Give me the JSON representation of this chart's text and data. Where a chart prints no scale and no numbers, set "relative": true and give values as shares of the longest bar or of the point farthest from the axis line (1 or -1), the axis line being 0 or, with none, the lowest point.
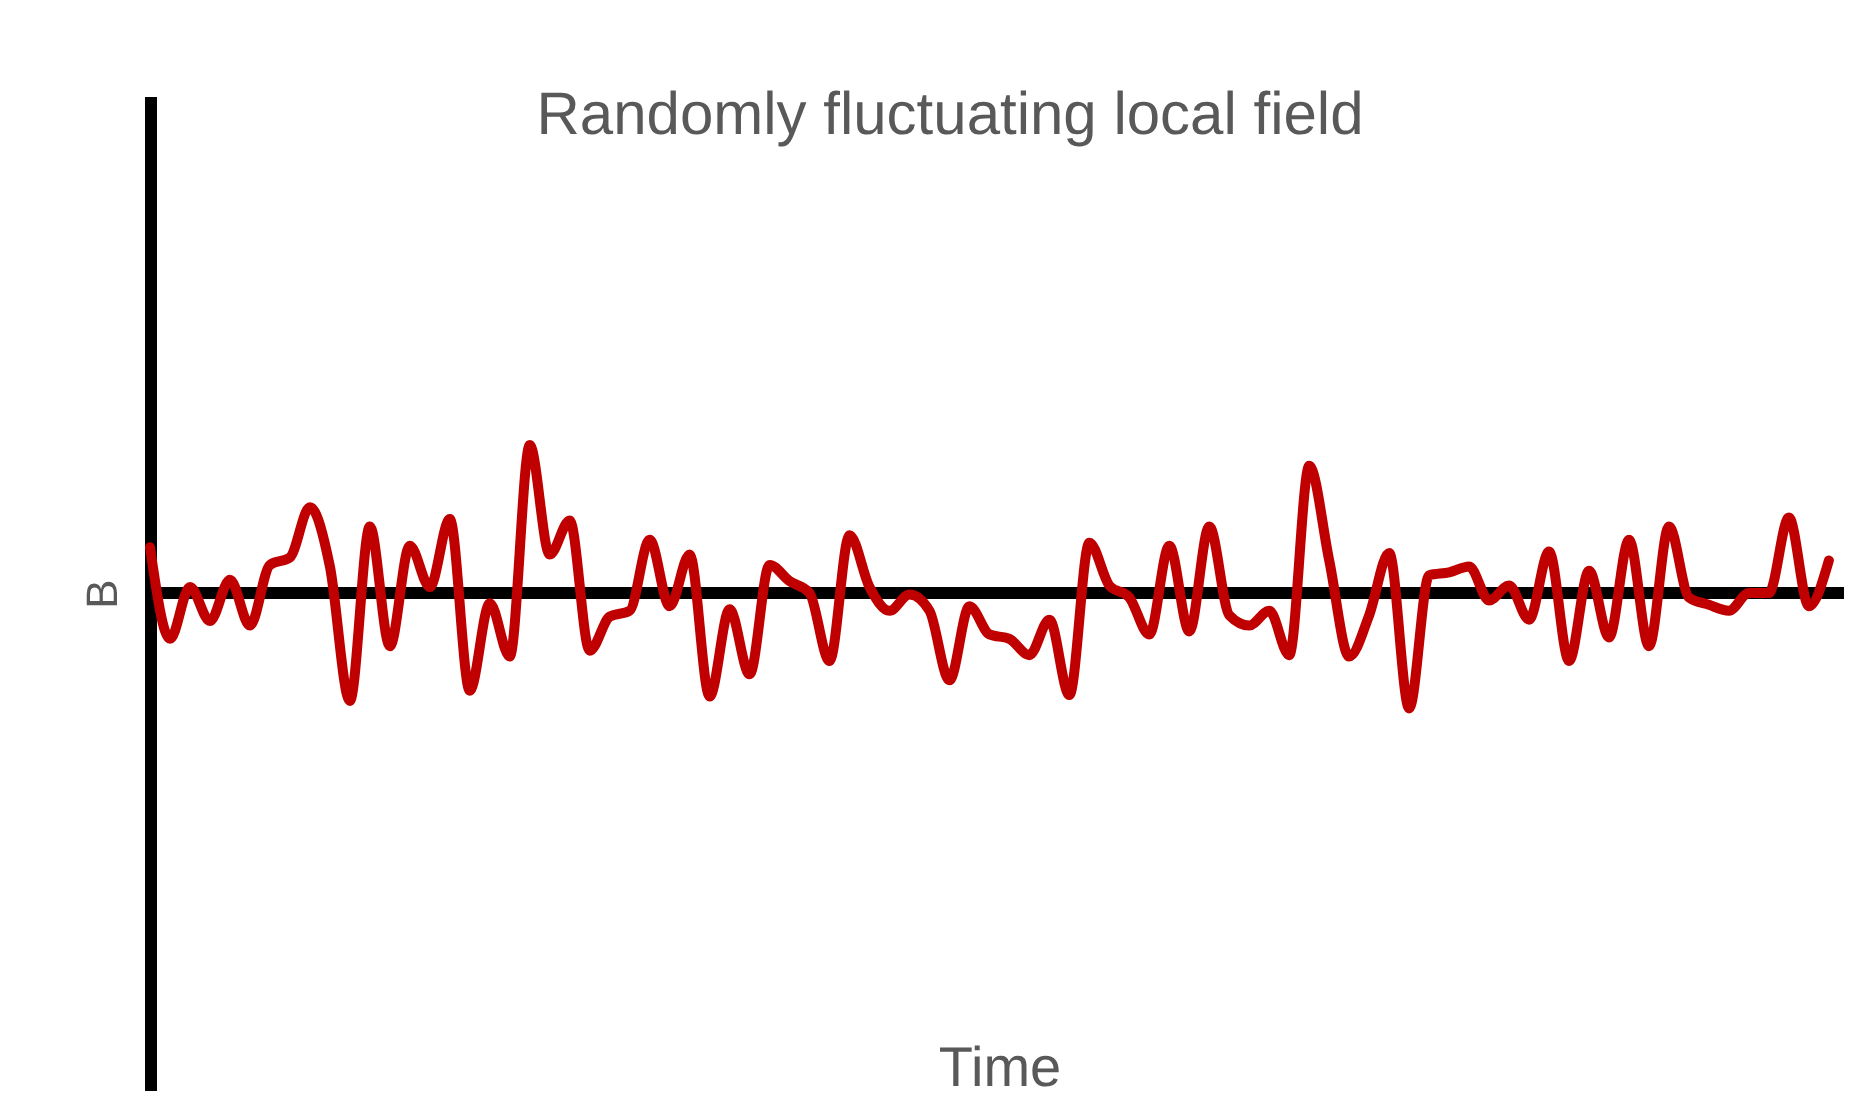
{
  "chart_data": {
    "type": "line",
    "relative": true,
    "title": "Randomly fluctuating local field",
    "annotations": [
      "Time"
    ],
    "ylabel": "B",
    "grid": false,
    "marker": "none",
    "line_style": "solid",
    "categories": [
      null,
      null,
      null,
      null,
      null,
      null,
      null,
      null,
      null,
      null,
      null,
      null,
      null,
      null,
      null,
      null,
      null,
      null,
      null,
      null,
      null,
      null,
      null,
      null,
      null,
      null,
      null,
      null,
      null,
      null,
      null,
      null,
      null,
      null,
      null,
      null,
      null,
      null,
      null,
      null,
      null,
      null,
      null,
      null,
      null,
      null,
      null,
      null,
      null,
      null,
      null,
      null,
      null,
      null,
      null,
      null,
      null,
      null,
      null,
      null,
      null,
      null,
      null,
      null,
      null,
      null,
      null,
      null,
      null,
      null,
      null,
      null,
      null,
      null,
      null,
      null,
      null,
      null,
      null,
      null,
      null,
      null,
      null,
      null,
      null
    ],
    "series": [
      {
        "color": "#c00000",
        "values": [
          0.31,
          -0.31,
          0.04,
          -0.19,
          0.09,
          -0.22,
          0.19,
          0.24,
          0.58,
          0.18,
          -0.73,
          0.45,
          -0.36,
          0.32,
          0.04,
          0.5,
          -0.66,
          -0.07,
          -0.43,
          1.0,
          0.26,
          0.49,
          -0.39,
          -0.16,
          -0.12,
          0.36,
          -0.09,
          0.26,
          -0.7,
          -0.11,
          -0.55,
          0.19,
          0.08,
          0,
          -0.46,
          0.39,
          0.04,
          -0.12,
          -0.01,
          -0.12,
          -0.59,
          -0.09,
          -0.28,
          -0.31,
          -0.42,
          -0.18,
          -0.69,
          0.34,
          0.05,
          -0.03,
          -0.28,
          0.32,
          -0.26,
          0.45,
          -0.15,
          -0.22,
          -0.12,
          -0.42,
          0.86,
          0.22,
          -0.43,
          -0.15,
          0.27,
          -0.78,
          0.12,
          0.14,
          0.18,
          -0.05,
          0.05,
          -0.18,
          0.28,
          -0.46,
          0.15,
          -0.3,
          0.36,
          -0.36,
          0.45,
          -0.03,
          -0.08,
          -0.12,
          0,
          0,
          0.51,
          -0.09,
          0.22
        ]
      }
    ]
  }
}
